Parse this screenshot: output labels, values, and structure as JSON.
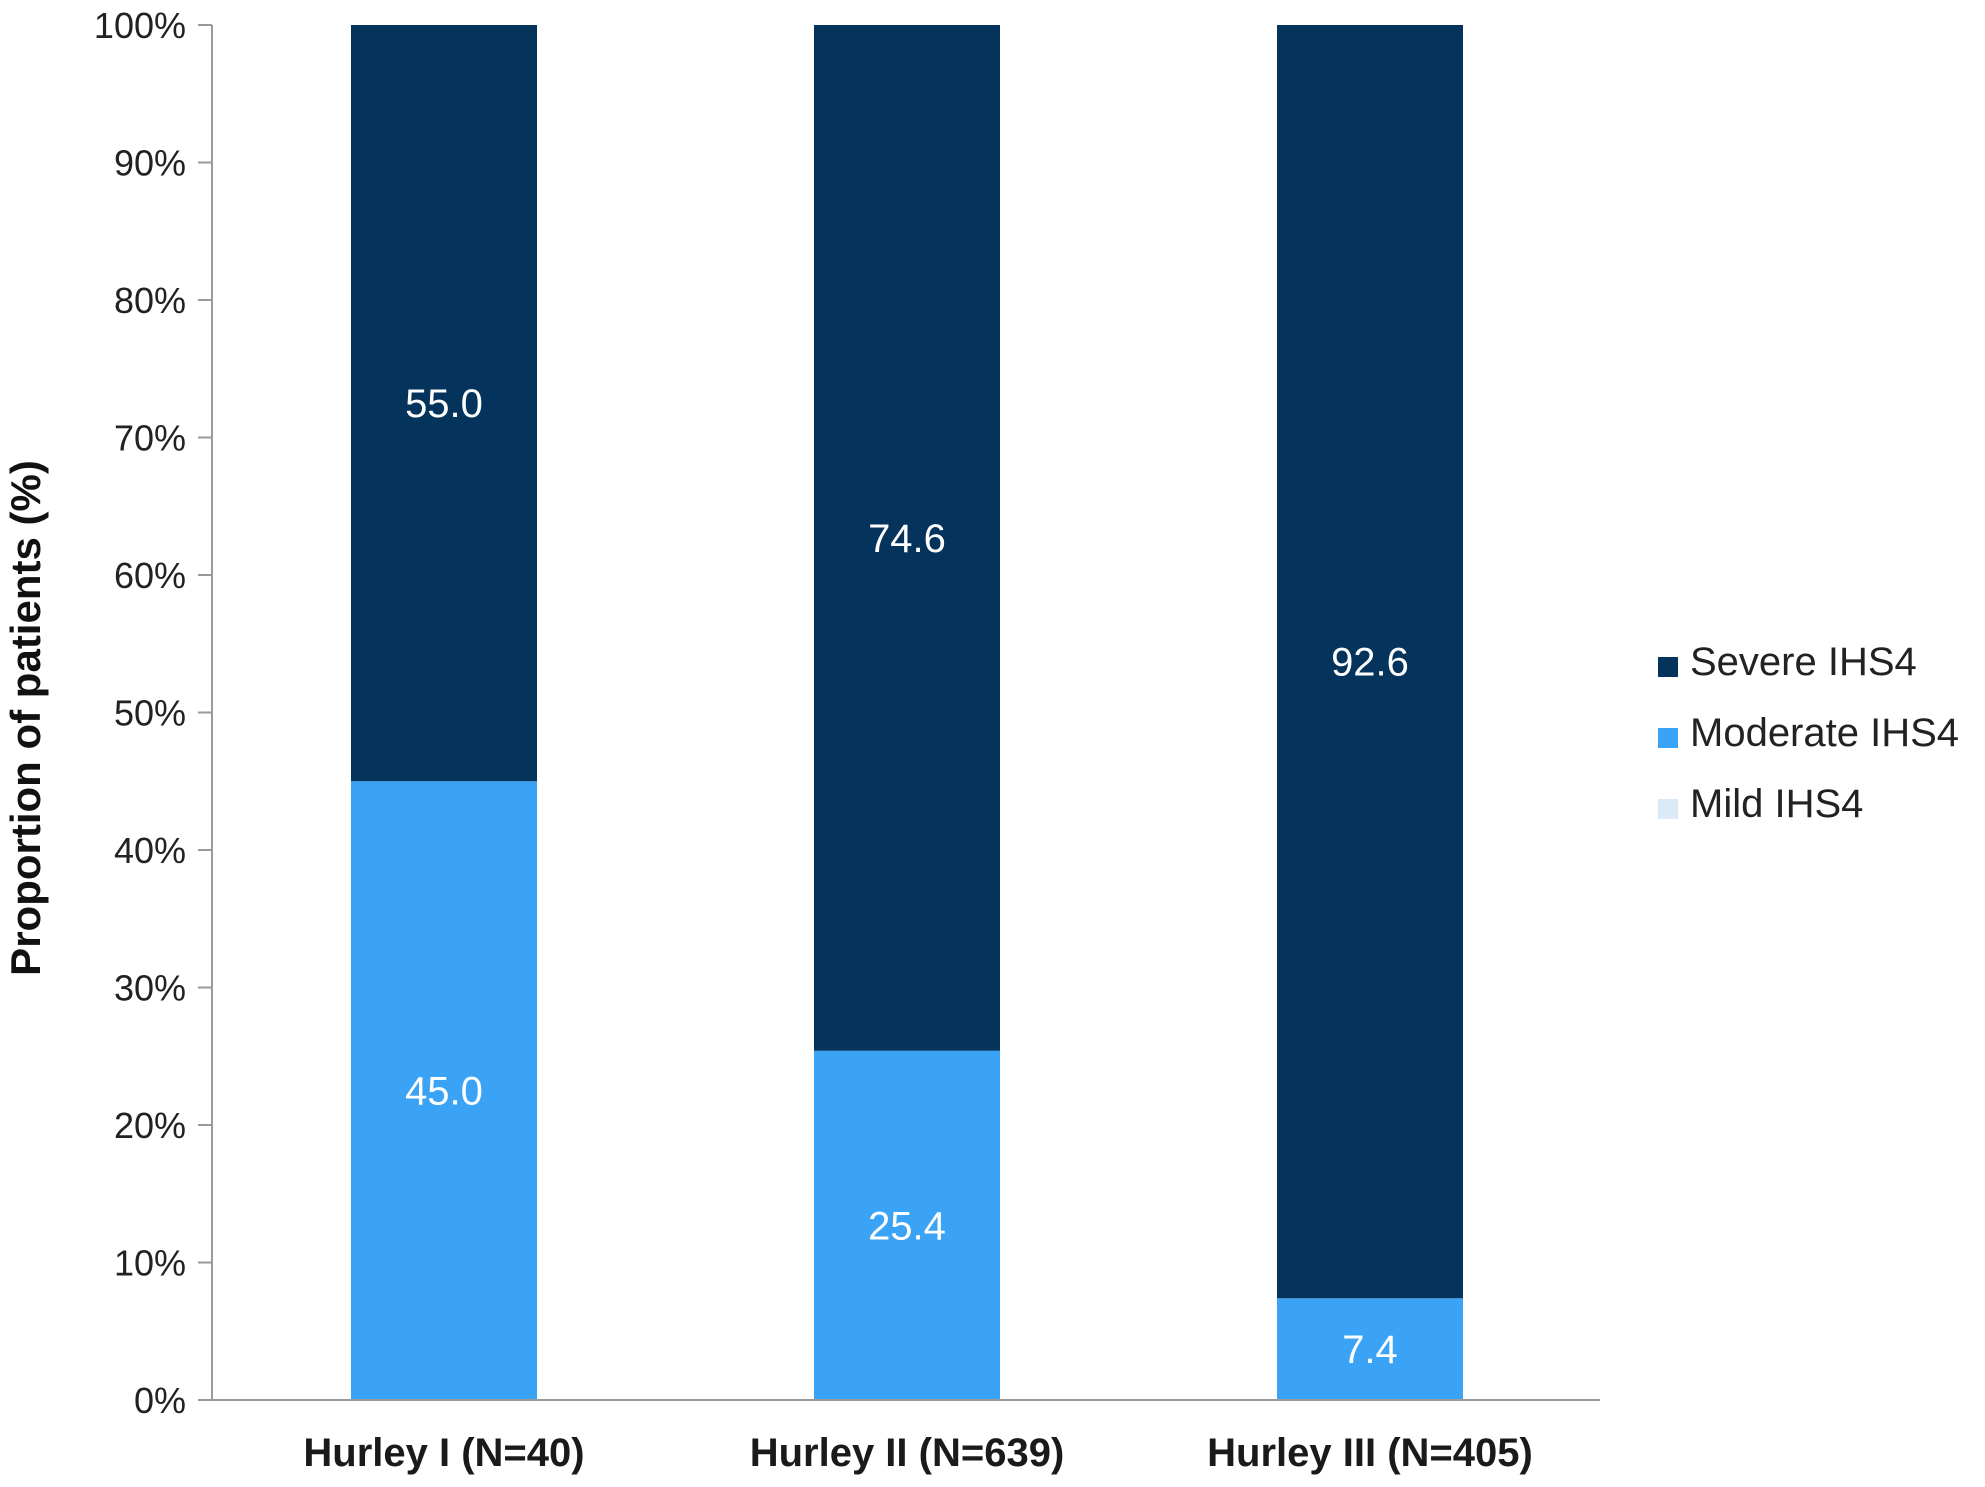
{
  "chart_data": {
    "type": "bar",
    "stacked": true,
    "orientation": "vertical",
    "title": "",
    "xlabel": "",
    "ylabel": "Proportion of patients (%)",
    "ylim": [
      0,
      100
    ],
    "yticks": [
      "0%",
      "10%",
      "20%",
      "30%",
      "40%",
      "50%",
      "60%",
      "70%",
      "80%",
      "90%",
      "100%"
    ],
    "grid": false,
    "legend_position": "right",
    "categories": [
      "Hurley I (N=40)",
      "Hurley II (N=639)",
      "Hurley III (N=405)"
    ],
    "series": [
      {
        "name": "Mild IHS4",
        "values": [
          0,
          0,
          0
        ],
        "labels": [
          "",
          "",
          ""
        ],
        "color": "#dceaf8"
      },
      {
        "name": "Moderate IHS4",
        "values": [
          45.0,
          25.4,
          7.4
        ],
        "labels": [
          "45.0",
          "25.4",
          "7.4"
        ],
        "color": "#3aa3f5"
      },
      {
        "name": "Severe IHS4",
        "values": [
          55.0,
          74.6,
          92.6
        ],
        "labels": [
          "55.0",
          "74.6",
          "92.6"
        ],
        "color": "#04335c"
      }
    ],
    "legend_order": [
      "Severe IHS4",
      "Moderate IHS4",
      "Mild IHS4"
    ]
  }
}
